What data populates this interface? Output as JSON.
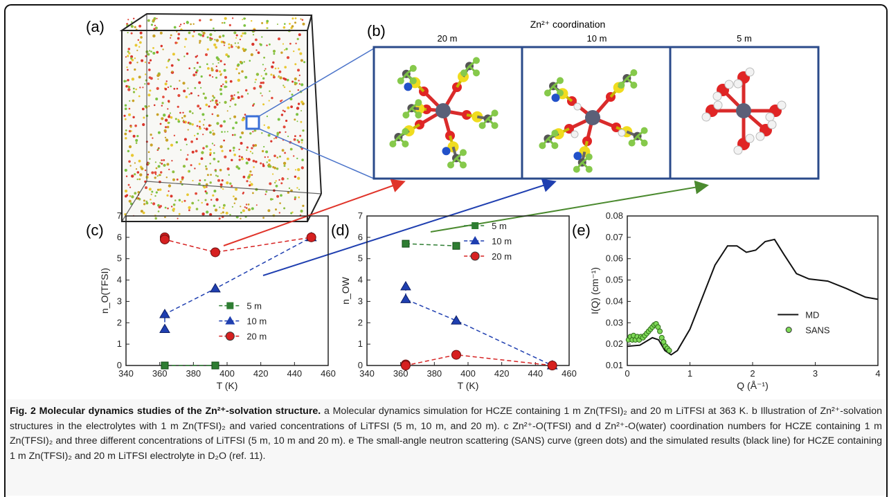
{
  "panel_labels": {
    "a": "(a)",
    "b": "(b)",
    "c": "(c)",
    "d": "(d)",
    "e": "(e)"
  },
  "panel_b": {
    "title": "Zn²⁺ coordination",
    "columns": [
      "20 m",
      "10 m",
      "5 m"
    ]
  },
  "chart_data": [
    {
      "id": "c",
      "type": "line",
      "xlabel": "T (K)",
      "ylabel": "n_O(TFSI)",
      "xlim": [
        340,
        460
      ],
      "ylim": [
        0,
        7
      ],
      "xticks": [
        "340",
        "360",
        "380",
        "400",
        "420",
        "440",
        "460"
      ],
      "yticks": [
        "0",
        "1",
        "2",
        "3",
        "4",
        "5",
        "6",
        "7"
      ],
      "legend_position": "lower-right",
      "series": [
        {
          "name": "5 m",
          "marker": "square",
          "color": "#2e7d32",
          "points": [
            [
              363,
              0
            ],
            [
              393,
              0
            ]
          ]
        },
        {
          "name": "10 m",
          "marker": "triangle",
          "color": "#1f3fb0",
          "points": [
            [
              363,
              1.7
            ],
            [
              363,
              2.4
            ],
            [
              393,
              3.6
            ],
            [
              450,
              6.0
            ]
          ]
        },
        {
          "name": "20 m",
          "marker": "circle",
          "color": "#d62020",
          "points": [
            [
              363,
              6.0
            ],
            [
              363,
              5.9
            ],
            [
              393,
              5.3
            ],
            [
              450,
              6.0
            ]
          ]
        }
      ]
    },
    {
      "id": "d",
      "type": "line",
      "xlabel": "T (K)",
      "ylabel": "n_OW",
      "xlim": [
        340,
        460
      ],
      "ylim": [
        0,
        7
      ],
      "xticks": [
        "340",
        "360",
        "380",
        "400",
        "420",
        "440",
        "460"
      ],
      "yticks": [
        "0",
        "1",
        "2",
        "3",
        "4",
        "5",
        "6",
        "7"
      ],
      "legend_position": "top-right",
      "series": [
        {
          "name": "5 m",
          "marker": "square",
          "color": "#2e7d32",
          "points": [
            [
              363,
              5.7
            ],
            [
              393,
              5.6
            ]
          ]
        },
        {
          "name": "10 m",
          "marker": "triangle",
          "color": "#1f3fb0",
          "points": [
            [
              363,
              3.7
            ],
            [
              363,
              3.1
            ],
            [
              393,
              2.1
            ],
            [
              450,
              0
            ]
          ]
        },
        {
          "name": "20 m",
          "marker": "circle",
          "color": "#d62020",
          "points": [
            [
              363,
              0.05
            ],
            [
              363,
              0
            ],
            [
              393,
              0.5
            ],
            [
              450,
              0
            ]
          ]
        }
      ]
    },
    {
      "id": "e",
      "type": "line",
      "xlabel": "Q (Å⁻¹)",
      "ylabel": "I(Q) (cm⁻¹)",
      "xlim": [
        0,
        4
      ],
      "ylim": [
        0.01,
        0.08
      ],
      "xticks": [
        "0",
        "1",
        "2",
        "3",
        "4"
      ],
      "yticks": [
        "0.01",
        "0.02",
        "0.03",
        "0.04",
        "0.05",
        "0.06",
        "0.07",
        "0.08"
      ],
      "legend_position": "lower-right",
      "series": [
        {
          "name": "MD",
          "marker": "line",
          "color": "#111111",
          "points": [
            [
              0,
              0.019
            ],
            [
              0.2,
              0.0195
            ],
            [
              0.4,
              0.023
            ],
            [
              0.5,
              0.022
            ],
            [
              0.6,
              0.017
            ],
            [
              0.7,
              0.015
            ],
            [
              0.8,
              0.017
            ],
            [
              1.0,
              0.027
            ],
            [
              1.2,
              0.042
            ],
            [
              1.4,
              0.057
            ],
            [
              1.6,
              0.066
            ],
            [
              1.75,
              0.066
            ],
            [
              1.9,
              0.063
            ],
            [
              2.05,
              0.064
            ],
            [
              2.2,
              0.068
            ],
            [
              2.35,
              0.069
            ],
            [
              2.5,
              0.062
            ],
            [
              2.7,
              0.053
            ],
            [
              2.9,
              0.0505
            ],
            [
              3.2,
              0.0495
            ],
            [
              3.5,
              0.046
            ],
            [
              3.8,
              0.042
            ],
            [
              4.0,
              0.041
            ]
          ]
        },
        {
          "name": "SANS",
          "marker": "circle",
          "color": "#7ed957",
          "points": [
            [
              0.02,
              0.022
            ],
            [
              0.05,
              0.0235
            ],
            [
              0.08,
              0.022
            ],
            [
              0.1,
              0.024
            ],
            [
              0.13,
              0.022
            ],
            [
              0.16,
              0.0235
            ],
            [
              0.19,
              0.022
            ],
            [
              0.22,
              0.0235
            ],
            [
              0.25,
              0.023
            ],
            [
              0.28,
              0.024
            ],
            [
              0.31,
              0.025
            ],
            [
              0.34,
              0.026
            ],
            [
              0.37,
              0.027
            ],
            [
              0.4,
              0.028
            ],
            [
              0.43,
              0.029
            ],
            [
              0.46,
              0.0295
            ],
            [
              0.49,
              0.028
            ],
            [
              0.52,
              0.026
            ],
            [
              0.55,
              0.023
            ],
            [
              0.58,
              0.021
            ],
            [
              0.61,
              0.019
            ],
            [
              0.64,
              0.018
            ],
            [
              0.67,
              0.017
            ]
          ]
        }
      ]
    }
  ],
  "caption": {
    "title": "Fig. 2 Molecular dynamics studies of the Zn²⁺-solvation structure.",
    "text": " a Molecular dynamics simulation for HCZE containing 1 m Zn(TFSI)₂ and 20 m LiTFSI at 363 K. b Illustration of Zn²⁺-solvation structures in the electrolytes with 1 m Zn(TFSI)₂ and varied concentrations of LiTFSI (5 m, 10 m, and 20 m). c Zn²⁺-O(TFSI) and d Zn²⁺-O(water) coordination numbers for HCZE containing 1 m Zn(TFSI)₂ and three different concentrations of LiTFSI (5 m, 10 m and 20 m). e The small-angle neutron scattering (SANS) curve (green dots) and the simulated results (black line) for HCZE containing 1 m Zn(TFSI)₂ and 20 m LiTFSI electrolyte in D₂O (ref. 11)."
  }
}
